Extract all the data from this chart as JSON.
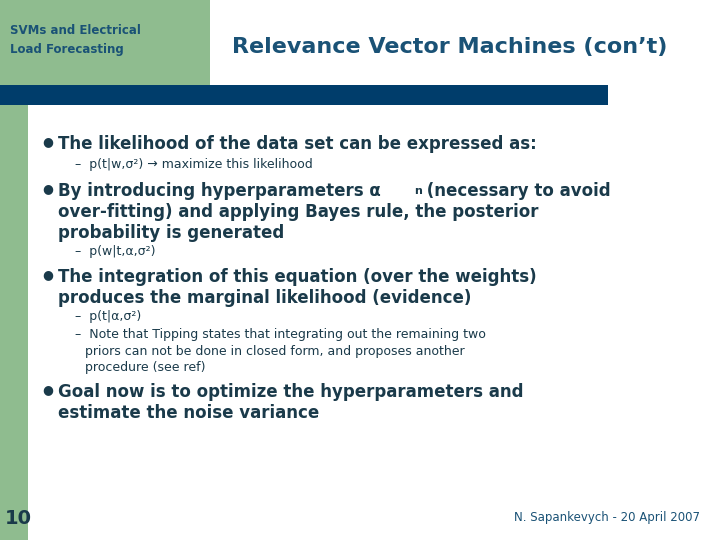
{
  "slide_bg": "#ffffff",
  "sidebar_bg": "#8fbc8f",
  "header_bar_color": "#003d6b",
  "title_text": "Relevance Vector Machines (con’t)",
  "title_color": "#1a5276",
  "sidebar_title_line1": "SVMs and Electrical",
  "sidebar_title_line2": "Load Forecasting",
  "sidebar_text_color": "#1a5276",
  "page_number": "10",
  "footer_text": "N. Sapankevych - 20 April 2007",
  "footer_color": "#1a5276",
  "text_color": "#1a3a4a",
  "bullet1": "The likelihood of the data set can be expressed as:",
  "sub1a": "p(t|w,σ²) → maximize this likelihood",
  "sub2a": "p(w|t,α,σ²)",
  "sub3a": "p(t|α,σ²)",
  "bullet4_line1": "Goal now is to optimize the hyperparameters and",
  "bullet4_line2": "estimate the noise variance"
}
